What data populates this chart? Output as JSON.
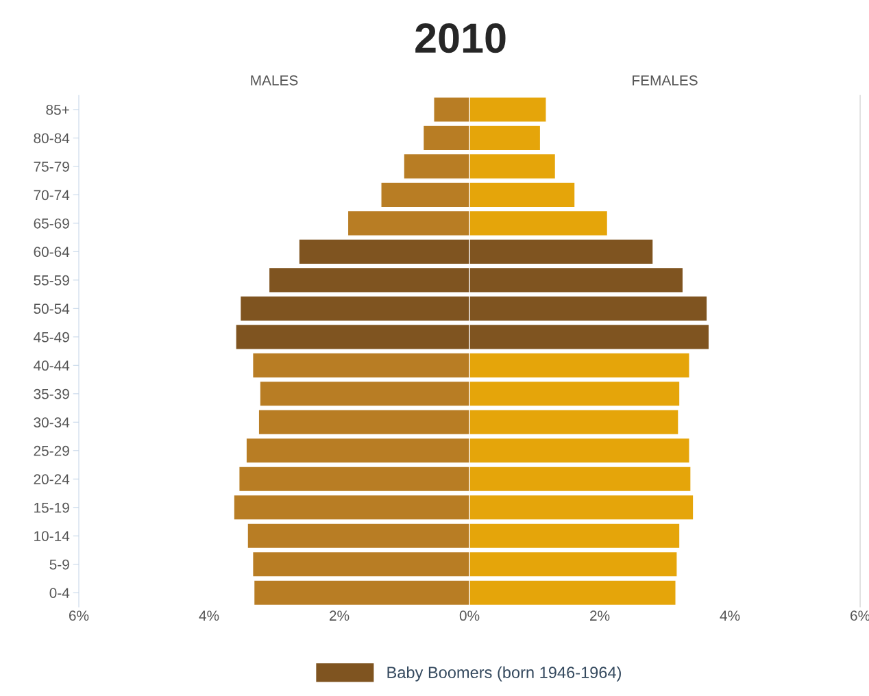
{
  "chart_data": [
    {
      "type": "bar",
      "orientation": "horizontal",
      "title": "2010",
      "subtitle": "MALES",
      "categories": [
        "85+",
        "80-84",
        "75-79",
        "70-74",
        "65-69",
        "60-64",
        "55-59",
        "50-54",
        "45-49",
        "40-44",
        "35-39",
        "30-34",
        "25-29",
        "20-24",
        "15-19",
        "10-14",
        "5-9",
        "0-4"
      ],
      "series": [
        {
          "color": "#b87d24",
          "values": [
            0.55,
            0.71,
            1.01,
            1.36,
            1.87,
            null,
            null,
            null,
            null,
            3.33,
            3.22,
            3.24,
            3.43,
            3.54,
            3.62,
            3.41,
            3.33,
            3.31
          ]
        },
        {
          "name": "Baby Boomers (born 1946-1964)",
          "color": "#7f5420",
          "values": [
            null,
            null,
            null,
            null,
            null,
            2.62,
            3.08,
            3.52,
            3.59,
            null,
            null,
            null,
            null,
            null,
            null,
            null,
            null,
            null
          ]
        }
      ],
      "xlim": [
        6,
        0
      ],
      "xticks": [
        {
          "value": 6,
          "label": "6%"
        },
        {
          "value": 4,
          "label": "4%"
        },
        {
          "value": 2,
          "label": "2%"
        },
        {
          "value": 0,
          "label": "0%"
        }
      ],
      "legend": "bottom"
    },
    {
      "type": "bar",
      "orientation": "horizontal",
      "subtitle": "FEMALES",
      "categories": [
        null,
        null,
        null,
        null,
        null,
        null,
        null,
        null,
        null,
        null,
        null,
        null,
        null,
        null,
        null,
        null,
        null,
        null
      ],
      "series": [
        {
          "color": "#e5a50a",
          "values": [
            1.18,
            1.09,
            1.32,
            1.62,
            2.12,
            null,
            null,
            null,
            null,
            3.38,
            3.23,
            3.21,
            3.38,
            3.4,
            3.44,
            3.23,
            3.19,
            3.17
          ]
        },
        {
          "color": "#7f5420",
          "values": [
            null,
            null,
            null,
            null,
            null,
            2.82,
            3.28,
            3.65,
            3.68,
            null,
            null,
            null,
            null,
            null,
            null,
            null,
            null,
            null
          ]
        }
      ],
      "xlim": [
        0,
        6
      ],
      "xticks": [
        {
          "value": 2,
          "label": "2%"
        },
        {
          "value": 4,
          "label": "4%"
        },
        {
          "value": 6,
          "label": "6%"
        }
      ],
      "tick_labels": "x"
    }
  ]
}
